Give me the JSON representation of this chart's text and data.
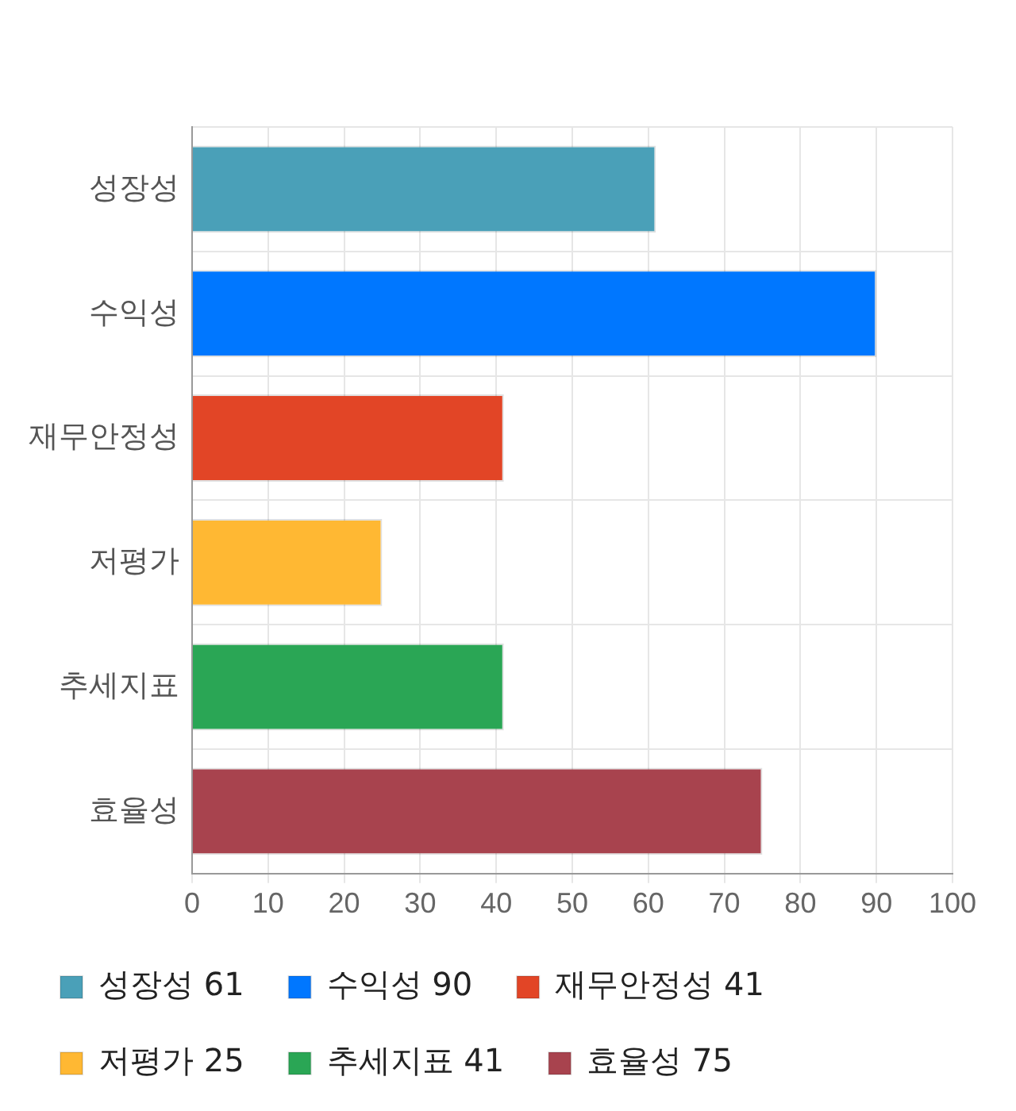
{
  "chart_data": {
    "type": "bar",
    "orientation": "horizontal",
    "categories": [
      "성장성",
      "수익성",
      "재무안정성",
      "저평가",
      "추세지표",
      "효율성"
    ],
    "series": [
      {
        "name": "성장성 61",
        "color": "#4aa0b8",
        "values": [
          61,
          null,
          null,
          null,
          null,
          null
        ]
      },
      {
        "name": "수익성 90",
        "color": "#0077ff",
        "values": [
          null,
          90,
          null,
          null,
          null,
          null
        ]
      },
      {
        "name": "재무안정성 41",
        "color": "#e24526",
        "values": [
          null,
          null,
          41,
          null,
          null,
          null
        ]
      },
      {
        "name": "저평가 25",
        "color": "#ffb833",
        "values": [
          null,
          null,
          null,
          25,
          null,
          null
        ]
      },
      {
        "name": "추세지표 41",
        "color": "#2aa655",
        "values": [
          null,
          null,
          null,
          null,
          41,
          null
        ]
      },
      {
        "name": "효율성 75",
        "color": "#a8434e",
        "values": [
          null,
          null,
          null,
          null,
          null,
          75
        ]
      }
    ],
    "xlim": [
      0,
      100
    ],
    "xticks": [
      0,
      10,
      20,
      30,
      40,
      50,
      60,
      70,
      80,
      90,
      100
    ],
    "grid": true,
    "legend": "bottom"
  }
}
